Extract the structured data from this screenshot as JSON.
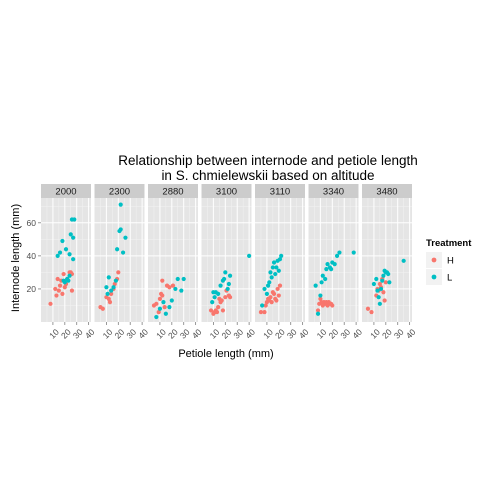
{
  "chart_data": {
    "type": "scatter",
    "title_lines": [
      "Relationship between internode and petiole length",
      "in S. chmielewskii based on altitude"
    ],
    "xlabel": "Petiole length (mm)",
    "ylabel": "Internode length (mm)",
    "xlim": [
      0,
      42
    ],
    "ylim": [
      0,
      75
    ],
    "x_ticks": [
      10,
      20,
      30,
      40
    ],
    "y_ticks": [
      20,
      40,
      60
    ],
    "grid": true,
    "facet_by": "altitude",
    "legend": {
      "title": "Treatment",
      "position": "right",
      "entries": [
        {
          "key": "H",
          "label": "H",
          "color": "#F8766D"
        },
        {
          "key": "L",
          "label": "L",
          "color": "#00BFC4"
        }
      ]
    },
    "panels": [
      {
        "label": "2000",
        "points": {
          "H": [
            [
              8,
              11
            ],
            [
              12,
              20
            ],
            [
              13,
              16
            ],
            [
              14,
              26
            ],
            [
              15,
              19
            ],
            [
              16,
              22
            ],
            [
              17,
              25
            ],
            [
              18,
              17
            ],
            [
              19,
              29
            ],
            [
              20,
              21
            ],
            [
              21,
              23
            ],
            [
              22,
              26
            ],
            [
              24,
              30
            ],
            [
              25,
              30
            ],
            [
              26,
              19
            ],
            [
              26,
              29
            ]
          ],
          "L": [
            [
              14,
              40
            ],
            [
              16,
              42
            ],
            [
              18,
              49
            ],
            [
              19,
              25
            ],
            [
              20,
              24
            ],
            [
              21,
              44
            ],
            [
              22,
              26
            ],
            [
              23,
              25
            ],
            [
              24,
              41
            ],
            [
              24,
              28
            ],
            [
              25,
              53
            ],
            [
              26,
              62
            ],
            [
              27,
              51
            ],
            [
              27,
              38
            ],
            [
              28,
              62
            ]
          ]
        }
      },
      {
        "label": "2300",
        "points": {
          "H": [
            [
              5,
              9
            ],
            [
              7,
              8
            ],
            [
              10,
              15
            ],
            [
              12,
              14
            ],
            [
              13,
              12
            ],
            [
              14,
              17
            ],
            [
              16,
              20
            ],
            [
              17,
              23
            ],
            [
              19,
              26
            ],
            [
              20,
              30
            ]
          ],
          "L": [
            [
              10,
              21
            ],
            [
              11,
              17
            ],
            [
              12,
              27
            ],
            [
              14,
              19
            ],
            [
              16,
              21
            ],
            [
              18,
              25
            ],
            [
              19,
              44
            ],
            [
              21,
              55
            ],
            [
              22,
              56
            ],
            [
              22,
              71
            ],
            [
              24,
              42
            ],
            [
              26,
              51
            ]
          ]
        }
      },
      {
        "label": "2880",
        "points": {
          "H": [
            [
              5,
              10
            ],
            [
              7,
              11
            ],
            [
              9,
              6
            ],
            [
              10,
              14
            ],
            [
              11,
              17
            ],
            [
              12,
              16
            ],
            [
              12,
              25
            ],
            [
              14,
              9
            ],
            [
              16,
              22
            ],
            [
              18,
              21
            ],
            [
              21,
              22
            ]
          ],
          "L": [
            [
              7,
              3
            ],
            [
              10,
              8
            ],
            [
              13,
              12
            ],
            [
              15,
              5
            ],
            [
              18,
              9
            ],
            [
              20,
              13
            ],
            [
              23,
              20
            ],
            [
              25,
              26
            ],
            [
              28,
              19
            ],
            [
              30,
              26
            ]
          ]
        }
      },
      {
        "label": "3100",
        "points": {
          "H": [
            [
              8,
              7
            ],
            [
              10,
              5
            ],
            [
              11,
              6
            ],
            [
              12,
              7
            ],
            [
              13,
              6
            ],
            [
              14,
              9
            ],
            [
              15,
              14
            ],
            [
              16,
              12
            ],
            [
              17,
              13
            ],
            [
              18,
              7
            ],
            [
              20,
              15
            ],
            [
              21,
              19
            ],
            [
              23,
              16
            ],
            [
              24,
              15
            ]
          ],
          "L": [
            [
              9,
              12
            ],
            [
              10,
              18
            ],
            [
              11,
              15
            ],
            [
              12,
              18
            ],
            [
              14,
              17
            ],
            [
              16,
              22
            ],
            [
              18,
              25
            ],
            [
              19,
              26
            ],
            [
              20,
              30
            ],
            [
              22,
              20
            ],
            [
              23,
              23
            ],
            [
              24,
              28
            ],
            [
              40,
              40
            ]
          ]
        }
      },
      {
        "label": "3110",
        "points": {
          "H": [
            [
              5,
              6
            ],
            [
              8,
              6
            ],
            [
              9,
              10
            ],
            [
              10,
              12
            ],
            [
              11,
              14
            ],
            [
              12,
              13
            ],
            [
              13,
              15
            ],
            [
              14,
              12
            ],
            [
              15,
              18
            ],
            [
              16,
              17
            ],
            [
              17,
              14
            ],
            [
              18,
              13
            ],
            [
              19,
              20
            ],
            [
              20,
              16
            ],
            [
              21,
              22
            ]
          ],
          "L": [
            [
              6,
              10
            ],
            [
              8,
              20
            ],
            [
              10,
              17
            ],
            [
              11,
              22
            ],
            [
              12,
              24
            ],
            [
              13,
              30
            ],
            [
              14,
              27
            ],
            [
              15,
              33
            ],
            [
              16,
              36
            ],
            [
              17,
              29
            ],
            [
              18,
              33
            ],
            [
              19,
              37
            ],
            [
              20,
              31
            ],
            [
              21,
              38
            ],
            [
              22,
              40
            ]
          ]
        }
      },
      {
        "label": "3340",
        "points": {
          "H": [
            [
              8,
              7
            ],
            [
              9,
              11
            ],
            [
              10,
              14
            ],
            [
              11,
              12
            ],
            [
              12,
              10
            ],
            [
              13,
              12
            ],
            [
              14,
              11
            ],
            [
              15,
              12
            ],
            [
              16,
              10
            ],
            [
              17,
              12
            ],
            [
              18,
              11
            ],
            [
              19,
              11
            ],
            [
              20,
              10
            ]
          ],
          "L": [
            [
              6,
              22
            ],
            [
              8,
              5
            ],
            [
              10,
              16
            ],
            [
              11,
              24
            ],
            [
              12,
              28
            ],
            [
              14,
              26
            ],
            [
              15,
              32
            ],
            [
              16,
              35
            ],
            [
              18,
              33
            ],
            [
              19,
              32
            ],
            [
              20,
              36
            ],
            [
              22,
              35
            ],
            [
              24,
              40
            ],
            [
              26,
              42
            ],
            [
              38,
              42
            ]
          ]
        }
      },
      {
        "label": "3480",
        "points": {
          "H": [
            [
              5,
              8
            ],
            [
              8,
              6
            ],
            [
              12,
              16
            ],
            [
              13,
              20
            ],
            [
              14,
              19
            ],
            [
              15,
              23
            ],
            [
              16,
              21
            ],
            [
              17,
              26
            ],
            [
              18,
              18
            ],
            [
              19,
              13
            ],
            [
              20,
              24
            ]
          ],
          "L": [
            [
              10,
              23
            ],
            [
              12,
              26
            ],
            [
              13,
              19
            ],
            [
              14,
              15
            ],
            [
              15,
              11
            ],
            [
              16,
              20
            ],
            [
              17,
              25
            ],
            [
              18,
              28
            ],
            [
              19,
              31
            ],
            [
              20,
              30
            ],
            [
              21,
              30
            ],
            [
              22,
              29
            ],
            [
              23,
              24
            ],
            [
              35,
              37
            ]
          ]
        }
      }
    ]
  }
}
